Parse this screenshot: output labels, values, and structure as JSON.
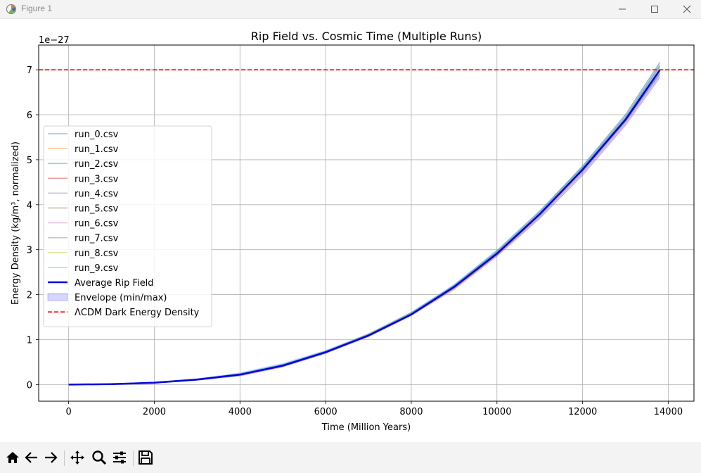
{
  "window": {
    "title": "Figure 1",
    "icons": [
      "matplotlib-icon",
      "minimize-icon",
      "maximize-icon",
      "close-icon"
    ]
  },
  "toolbar": {
    "icons": [
      "home-icon",
      "back-icon",
      "forward-icon",
      "pan-icon",
      "zoom-icon",
      "configure-subplots-icon",
      "save-icon"
    ]
  },
  "chart_data": {
    "type": "line",
    "title": "Rip Field vs. Cosmic Time (Multiple Runs)",
    "xlabel": "Time (Million Years)",
    "ylabel": "Energy Density (kg/m³, normalized)",
    "y_offset_label": "1e−27",
    "xlim": [
      -700,
      14600
    ],
    "ylim": [
      -0.37,
      7.55
    ],
    "y_scale_factor": 1e-27,
    "xticks": [
      0,
      2000,
      4000,
      6000,
      8000,
      10000,
      12000,
      14000
    ],
    "xtick_labels": [
      "0",
      "2000",
      "4000",
      "6000",
      "8000",
      "10000",
      "12000",
      "14000"
    ],
    "yticks": [
      0,
      1,
      2,
      3,
      4,
      5,
      6,
      7
    ],
    "ytick_labels": [
      "0",
      "1",
      "2",
      "3",
      "4",
      "5",
      "6",
      "7"
    ],
    "grid": true,
    "legend_position": "center-left",
    "x": [
      0,
      1000,
      2000,
      3000,
      4000,
      5000,
      6000,
      7000,
      8000,
      9000,
      10000,
      11000,
      12000,
      13000,
      13800
    ],
    "series": [
      {
        "name": "run_0.csv",
        "color": "#1f77b4",
        "values": [
          0,
          0.01,
          0.05,
          0.12,
          0.24,
          0.44,
          0.74,
          1.1,
          1.56,
          2.2,
          2.94,
          3.8,
          4.76,
          5.86,
          6.92
        ]
      },
      {
        "name": "run_1.csv",
        "color": "#ff7f0e",
        "values": [
          0,
          0.01,
          0.04,
          0.11,
          0.22,
          0.42,
          0.72,
          1.12,
          1.57,
          2.16,
          2.92,
          3.78,
          4.78,
          5.9,
          7.0
        ]
      },
      {
        "name": "run_2.csv",
        "color": "#2ca02c",
        "values": [
          0,
          0.01,
          0.05,
          0.12,
          0.23,
          0.43,
          0.73,
          1.09,
          1.58,
          2.19,
          2.93,
          3.81,
          4.82,
          5.93,
          7.08
        ]
      },
      {
        "name": "run_3.csv",
        "color": "#d62728",
        "values": [
          0,
          0.01,
          0.04,
          0.11,
          0.22,
          0.42,
          0.72,
          1.1,
          1.56,
          2.17,
          2.91,
          3.79,
          4.78,
          5.88,
          6.98
        ]
      },
      {
        "name": "run_4.csv",
        "color": "#9467bd",
        "values": [
          0,
          0.01,
          0.04,
          0.1,
          0.2,
          0.4,
          0.7,
          1.08,
          1.55,
          2.14,
          2.88,
          3.74,
          4.72,
          5.84,
          6.9
        ]
      },
      {
        "name": "run_5.csv",
        "color": "#8c564b",
        "values": [
          0,
          0.01,
          0.04,
          0.11,
          0.22,
          0.42,
          0.73,
          1.08,
          1.56,
          2.16,
          2.91,
          3.78,
          4.79,
          5.9,
          7.02
        ]
      },
      {
        "name": "run_6.csv",
        "color": "#e377c2",
        "values": [
          0,
          0.01,
          0.04,
          0.1,
          0.21,
          0.41,
          0.71,
          1.07,
          1.54,
          2.13,
          2.86,
          3.7,
          4.66,
          5.78,
          6.84
        ]
      },
      {
        "name": "run_7.csv",
        "color": "#7f7f7f",
        "values": [
          0,
          0.01,
          0.05,
          0.12,
          0.23,
          0.44,
          0.74,
          1.11,
          1.6,
          2.2,
          2.96,
          3.84,
          4.86,
          6.0,
          7.16
        ]
      },
      {
        "name": "run_8.csv",
        "color": "#bcbd22",
        "values": [
          0,
          0.01,
          0.04,
          0.11,
          0.22,
          0.43,
          0.72,
          1.1,
          1.57,
          2.17,
          2.92,
          3.79,
          4.79,
          5.91,
          7.01
        ]
      },
      {
        "name": "run_9.csv",
        "color": "#17becf",
        "values": [
          0,
          0.01,
          0.05,
          0.12,
          0.24,
          0.45,
          0.74,
          1.12,
          1.59,
          2.21,
          2.98,
          3.86,
          4.84,
          5.96,
          7.1
        ]
      },
      {
        "name": "Average Rip Field",
        "color": "#0000dd",
        "values": [
          0,
          0.01,
          0.04,
          0.11,
          0.22,
          0.42,
          0.72,
          1.09,
          1.56,
          2.17,
          2.91,
          3.79,
          4.78,
          5.89,
          6.99
        ]
      }
    ],
    "envelope": {
      "name": "Envelope (min/max)",
      "color": "#6b6bff",
      "min": [
        0,
        0.01,
        0.03,
        0.09,
        0.18,
        0.38,
        0.68,
        1.05,
        1.52,
        2.1,
        2.84,
        3.68,
        4.64,
        5.74,
        6.8
      ],
      "max": [
        0,
        0.02,
        0.06,
        0.14,
        0.27,
        0.48,
        0.77,
        1.14,
        1.62,
        2.24,
        3.0,
        3.88,
        4.88,
        6.02,
        7.18
      ]
    },
    "hline": {
      "name": "ΛCDM Dark Energy Density",
      "value": 7.0,
      "color": "#ff0000",
      "style": "dashed"
    }
  }
}
